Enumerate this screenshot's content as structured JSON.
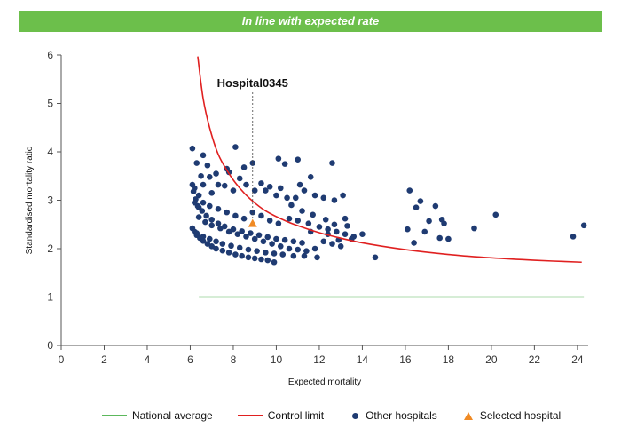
{
  "banner": {
    "text": "In line with expected rate",
    "color": "#6cbf4b"
  },
  "chart_data": {
    "type": "scatter",
    "xlabel": "Expected mortality",
    "ylabel": "Standardised mortality ratio",
    "xlim": [
      0,
      24.5
    ],
    "ylim": [
      0,
      6
    ],
    "xticks": [
      0,
      2,
      4,
      6,
      8,
      10,
      12,
      14,
      16,
      18,
      20,
      22,
      24
    ],
    "yticks": [
      0,
      1,
      2,
      3,
      4,
      5,
      6
    ],
    "national_average": {
      "name": "National average",
      "y": 1,
      "x_range": [
        6.4,
        24.3
      ],
      "color": "#5cb85c"
    },
    "control_limit": {
      "name": "Control limit",
      "color": "#e02020",
      "points": [
        [
          6.35,
          5.97
        ],
        [
          6.6,
          5.1
        ],
        [
          6.9,
          4.5
        ],
        [
          7.3,
          3.95
        ],
        [
          7.8,
          3.55
        ],
        [
          8.3,
          3.25
        ],
        [
          8.8,
          3.02
        ],
        [
          9.5,
          2.78
        ],
        [
          10.5,
          2.56
        ],
        [
          11.5,
          2.4
        ],
        [
          12.5,
          2.27
        ],
        [
          14,
          2.12
        ],
        [
          16,
          1.98
        ],
        [
          18,
          1.88
        ],
        [
          20,
          1.81
        ],
        [
          22,
          1.76
        ],
        [
          24.2,
          1.72
        ]
      ]
    },
    "selected": {
      "name": "Selected hospital",
      "label": "Hospital0345",
      "x": 8.9,
      "y": 2.52,
      "color": "#f08a24"
    },
    "others": {
      "name": "Other hospitals",
      "color": "#1f3b72",
      "points": [
        [
          6.1,
          4.07
        ],
        [
          6.3,
          3.77
        ],
        [
          6.6,
          3.93
        ],
        [
          6.8,
          3.72
        ],
        [
          7.2,
          3.55
        ],
        [
          7.7,
          3.65
        ],
        [
          8.1,
          4.1
        ],
        [
          8.5,
          3.68
        ],
        [
          8.9,
          3.77
        ],
        [
          10.1,
          3.86
        ],
        [
          10.4,
          3.75
        ],
        [
          11.0,
          3.84
        ],
        [
          12.6,
          3.77
        ],
        [
          6.1,
          3.32
        ],
        [
          6.5,
          3.5
        ],
        [
          6.9,
          3.48
        ],
        [
          7.3,
          3.32
        ],
        [
          7.8,
          3.58
        ],
        [
          8.3,
          3.45
        ],
        [
          9.3,
          3.35
        ],
        [
          9.7,
          3.28
        ],
        [
          10.2,
          3.25
        ],
        [
          11.1,
          3.32
        ],
        [
          11.6,
          3.48
        ],
        [
          6.2,
          3.25
        ],
        [
          6.4,
          3.1
        ],
        [
          6.6,
          3.32
        ],
        [
          7.0,
          3.15
        ],
        [
          7.6,
          3.3
        ],
        [
          8.0,
          3.2
        ],
        [
          8.6,
          3.32
        ],
        [
          9.0,
          3.2
        ],
        [
          9.5,
          3.2
        ],
        [
          10.0,
          3.1
        ],
        [
          10.5,
          3.05
        ],
        [
          10.9,
          3.05
        ],
        [
          11.3,
          3.2
        ],
        [
          11.8,
          3.1
        ],
        [
          12.2,
          3.05
        ],
        [
          12.7,
          3.0
        ],
        [
          13.1,
          3.1
        ],
        [
          6.15,
          3.18
        ],
        [
          6.25,
          3.02
        ],
        [
          6.35,
          2.88
        ],
        [
          6.55,
          2.78
        ],
        [
          6.75,
          2.68
        ],
        [
          7.0,
          2.6
        ],
        [
          7.3,
          2.52
        ],
        [
          7.6,
          2.46
        ],
        [
          8.0,
          2.4
        ],
        [
          8.4,
          2.36
        ],
        [
          8.8,
          2.32
        ],
        [
          9.2,
          2.28
        ],
        [
          9.6,
          2.24
        ],
        [
          10.0,
          2.2
        ],
        [
          10.4,
          2.18
        ],
        [
          10.8,
          2.15
        ],
        [
          11.2,
          2.12
        ],
        [
          6.2,
          2.95
        ],
        [
          6.4,
          2.85
        ],
        [
          6.6,
          2.95
        ],
        [
          6.9,
          2.88
        ],
        [
          7.3,
          2.82
        ],
        [
          7.7,
          2.75
        ],
        [
          8.1,
          2.68
        ],
        [
          8.5,
          2.62
        ],
        [
          8.9,
          2.75
        ],
        [
          9.3,
          2.68
        ],
        [
          9.7,
          2.58
        ],
        [
          10.1,
          2.52
        ],
        [
          10.6,
          2.62
        ],
        [
          11.0,
          2.58
        ],
        [
          11.5,
          2.52
        ],
        [
          12.0,
          2.45
        ],
        [
          12.4,
          2.4
        ],
        [
          12.8,
          2.35
        ],
        [
          13.2,
          2.3
        ],
        [
          13.6,
          2.25
        ],
        [
          14.0,
          2.3
        ],
        [
          6.1,
          2.42
        ],
        [
          6.2,
          2.35
        ],
        [
          6.3,
          2.28
        ],
        [
          6.45,
          2.22
        ],
        [
          6.6,
          2.16
        ],
        [
          6.8,
          2.1
        ],
        [
          7.0,
          2.05
        ],
        [
          7.2,
          2.0
        ],
        [
          7.5,
          1.96
        ],
        [
          7.8,
          1.92
        ],
        [
          8.1,
          1.88
        ],
        [
          8.4,
          1.85
        ],
        [
          8.7,
          1.82
        ],
        [
          9.0,
          1.8
        ],
        [
          9.3,
          1.78
        ],
        [
          9.6,
          1.76
        ],
        [
          9.9,
          1.72
        ],
        [
          6.3,
          2.32
        ],
        [
          6.6,
          2.25
        ],
        [
          6.9,
          2.2
        ],
        [
          7.2,
          2.15
        ],
        [
          7.5,
          2.1
        ],
        [
          7.9,
          2.06
        ],
        [
          8.3,
          2.02
        ],
        [
          8.7,
          1.98
        ],
        [
          9.1,
          1.95
        ],
        [
          9.5,
          1.92
        ],
        [
          9.9,
          1.9
        ],
        [
          10.3,
          1.88
        ],
        [
          10.8,
          1.85
        ],
        [
          11.3,
          1.85
        ],
        [
          11.9,
          1.82
        ],
        [
          6.4,
          2.65
        ],
        [
          6.7,
          2.55
        ],
        [
          7.0,
          2.48
        ],
        [
          7.4,
          2.42
        ],
        [
          7.8,
          2.35
        ],
        [
          8.2,
          2.3
        ],
        [
          8.6,
          2.25
        ],
        [
          9.0,
          2.2
        ],
        [
          9.4,
          2.15
        ],
        [
          9.8,
          2.1
        ],
        [
          10.2,
          2.05
        ],
        [
          10.6,
          2.0
        ],
        [
          11.0,
          1.98
        ],
        [
          11.4,
          1.95
        ],
        [
          11.8,
          2.0
        ],
        [
          12.2,
          2.15
        ],
        [
          12.6,
          2.1
        ],
        [
          13.0,
          2.05
        ],
        [
          10.7,
          2.9
        ],
        [
          11.2,
          2.78
        ],
        [
          11.7,
          2.7
        ],
        [
          12.3,
          2.6
        ],
        [
          12.7,
          2.5
        ],
        [
          13.3,
          2.47
        ],
        [
          13.2,
          2.62
        ],
        [
          13.5,
          2.2
        ],
        [
          12.4,
          2.3
        ],
        [
          12.9,
          2.18
        ],
        [
          11.6,
          2.35
        ],
        [
          14.6,
          1.82
        ],
        [
          16.1,
          2.4
        ],
        [
          16.2,
          3.2
        ],
        [
          16.4,
          2.12
        ],
        [
          16.5,
          2.85
        ],
        [
          16.7,
          2.98
        ],
        [
          16.9,
          2.35
        ],
        [
          17.1,
          2.57
        ],
        [
          17.4,
          2.88
        ],
        [
          17.6,
          2.22
        ],
        [
          17.7,
          2.6
        ],
        [
          17.8,
          2.52
        ],
        [
          18.0,
          2.2
        ],
        [
          19.2,
          2.42
        ],
        [
          20.2,
          2.7
        ],
        [
          23.8,
          2.25
        ],
        [
          24.3,
          2.48
        ]
      ]
    }
  },
  "legend": {
    "national_average": "National average",
    "control_limit": "Control limit",
    "others": "Other hospitals",
    "selected": "Selected hospital"
  }
}
